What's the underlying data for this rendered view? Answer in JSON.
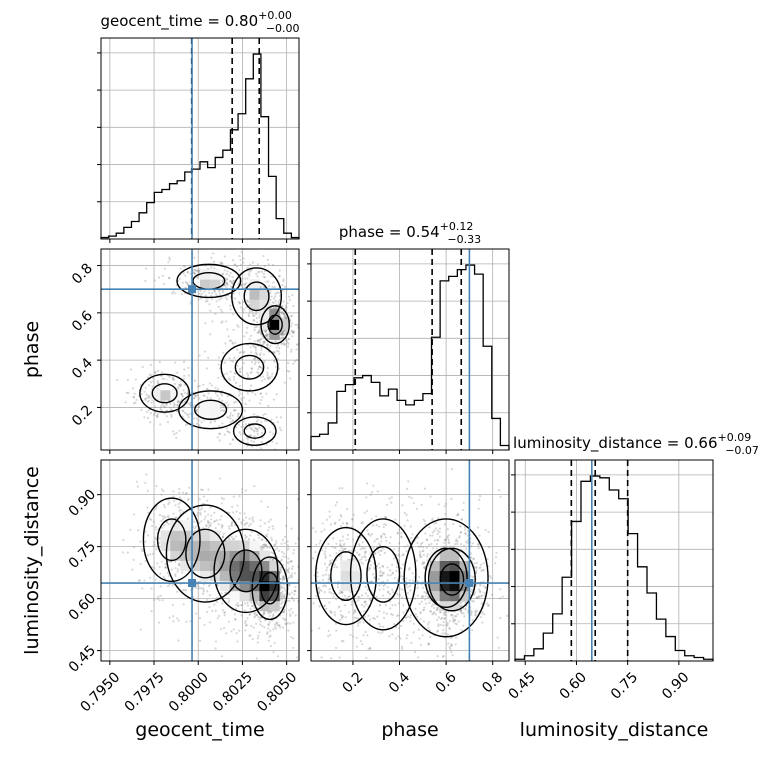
{
  "chart_data": {
    "type": "corner",
    "parameters": [
      "geocent_time",
      "phase",
      "luminosity_distance"
    ],
    "truths": [
      0.79965,
      0.7,
      0.645
    ],
    "colors": {
      "truth": "#4682b4",
      "hist": "#000000",
      "grid": "#b0b0b0",
      "scatter": "#8c8c8c"
    },
    "titles": [
      {
        "param": "geocent_time",
        "value": "0.80",
        "plus": "+0.00",
        "minus": "−0.00"
      },
      {
        "param": "phase",
        "value": "0.54",
        "plus": "+0.12",
        "minus": "−0.33"
      },
      {
        "param": "luminosity_distance",
        "value": "0.66",
        "plus": "+0.09",
        "minus": "−0.07"
      }
    ],
    "axes": {
      "geocent_time": {
        "range": [
          0.7945,
          0.8057
        ],
        "ticks": [
          0.795,
          0.7975,
          0.8,
          0.8025,
          0.805
        ],
        "tick_labels": [
          "0.7950",
          "0.7975",
          "0.8000",
          "0.8025",
          "0.8050"
        ]
      },
      "phase": {
        "range": [
          0.02,
          0.87
        ],
        "ticks": [
          0.2,
          0.4,
          0.6,
          0.8
        ],
        "tick_labels": [
          "0.2",
          "0.4",
          "0.6",
          "0.8"
        ]
      },
      "luminosity_distance": {
        "range": [
          0.42,
          1.0
        ],
        "ticks": [
          0.45,
          0.6,
          0.75,
          0.9
        ],
        "tick_labels": [
          "0.45",
          "0.60",
          "0.75",
          "0.90"
        ]
      }
    },
    "histograms": {
      "geocent_time": {
        "counts": [
          1,
          2,
          4,
          8,
          12,
          18,
          25,
          32,
          34,
          38,
          40,
          46,
          48,
          53,
          49,
          56,
          61,
          75,
          86,
          110,
          127,
          84,
          43,
          14,
          4,
          1
        ],
        "quantiles": [
          0.79963,
          0.80192,
          0.80345
        ]
      },
      "phase": {
        "counts": [
          6,
          7,
          12,
          26,
          29,
          32,
          33,
          30,
          24,
          27,
          22,
          20,
          22,
          25,
          50,
          75,
          77,
          80,
          82,
          78,
          46,
          14,
          2
        ],
        "quantiles": [
          0.21,
          0.54,
          0.665
        ]
      },
      "luminosity_distance": {
        "counts": [
          1,
          3,
          7,
          16,
          27,
          48,
          80,
          103,
          106,
          105,
          98,
          93,
          73,
          54,
          39,
          24,
          14,
          6,
          3,
          2,
          1
        ],
        "quantiles": [
          0.585,
          0.655,
          0.75
        ]
      }
    },
    "pairs": [
      {
        "x": "geocent_time",
        "y": "phase",
        "components": [
          {
            "cx": 0.80435,
            "cy": 0.55,
            "sx": 0.0004,
            "sy": 0.04,
            "w": 0.3
          },
          {
            "cx": 0.8033,
            "cy": 0.67,
            "sx": 0.0007,
            "sy": 0.06,
            "w": 0.15
          },
          {
            "cx": 0.8006,
            "cy": 0.735,
            "sx": 0.0009,
            "sy": 0.035,
            "w": 0.15
          },
          {
            "cx": 0.8029,
            "cy": 0.37,
            "sx": 0.0008,
            "sy": 0.05,
            "w": 0.08
          },
          {
            "cx": 0.7981,
            "cy": 0.26,
            "sx": 0.0007,
            "sy": 0.04,
            "w": 0.14
          },
          {
            "cx": 0.8007,
            "cy": 0.19,
            "sx": 0.0009,
            "sy": 0.04,
            "w": 0.12
          },
          {
            "cx": 0.8032,
            "cy": 0.1,
            "sx": 0.0006,
            "sy": 0.03,
            "w": 0.06
          }
        ]
      },
      {
        "x": "geocent_time",
        "y": "luminosity_distance",
        "components": [
          {
            "cx": 0.80405,
            "cy": 0.63,
            "sx": 0.0005,
            "sy": 0.045,
            "w": 0.35
          },
          {
            "cx": 0.8027,
            "cy": 0.68,
            "sx": 0.0009,
            "sy": 0.06,
            "w": 0.3
          },
          {
            "cx": 0.8004,
            "cy": 0.73,
            "sx": 0.0011,
            "sy": 0.07,
            "w": 0.2
          },
          {
            "cx": 0.7985,
            "cy": 0.77,
            "sx": 0.0008,
            "sy": 0.06,
            "w": 0.15
          }
        ]
      },
      {
        "x": "phase",
        "y": "luminosity_distance",
        "components": [
          {
            "cx": 0.625,
            "cy": 0.655,
            "sx": 0.05,
            "sy": 0.045,
            "w": 0.38
          },
          {
            "cx": 0.6,
            "cy": 0.66,
            "sx": 0.09,
            "sy": 0.085,
            "w": 0.25
          },
          {
            "cx": 0.17,
            "cy": 0.665,
            "sx": 0.065,
            "sy": 0.07,
            "w": 0.22
          },
          {
            "cx": 0.33,
            "cy": 0.67,
            "sx": 0.07,
            "sy": 0.08,
            "w": 0.15
          }
        ]
      }
    ],
    "xlabels": [
      "geocent_time",
      "phase",
      "luminosity_distance"
    ],
    "ylabels": [
      "phase",
      "luminosity_distance"
    ],
    "grid": true
  }
}
